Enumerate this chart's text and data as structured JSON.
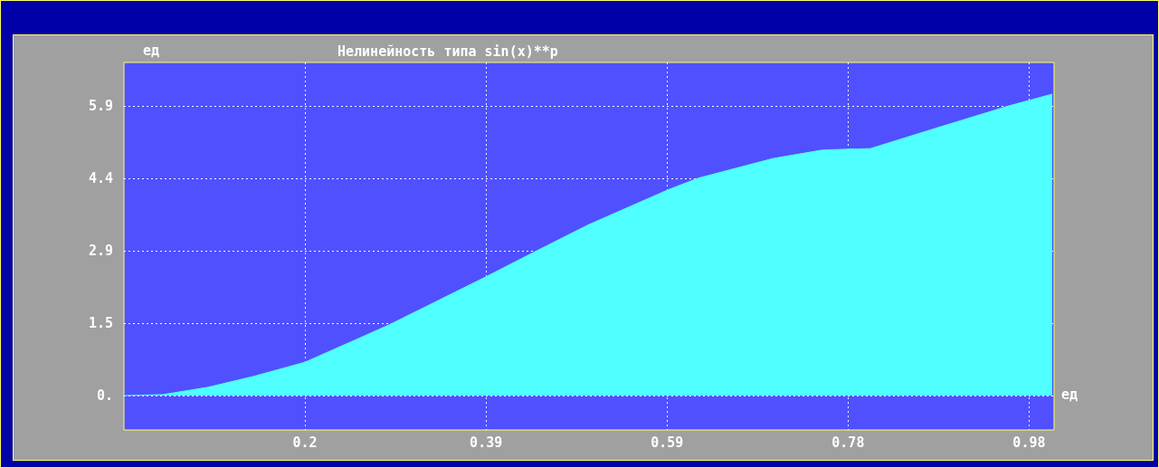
{
  "chart_data": {
    "type": "area",
    "title": "Нелинейность типа sin(x)**p",
    "ylabel": "ед",
    "xlabel": "ед",
    "x": [
      0,
      0.042,
      0.091,
      0.14,
      0.196,
      0.287,
      0.392,
      0.447,
      0.503,
      0.589,
      0.622,
      0.703,
      0.756,
      0.785,
      0.808,
      0.878,
      0.958,
      1.005
    ],
    "values": [
      0,
      0.02,
      0.17,
      0.39,
      0.68,
      1.44,
      2.42,
      2.95,
      3.48,
      4.19,
      4.43,
      4.83,
      5.0,
      5.02,
      5.03,
      5.44,
      5.9,
      6.14
    ],
    "color": "#50ffff",
    "xlim": [
      0,
      1.007
    ],
    "ylim": [
      -0.7,
      6.785
    ],
    "xticks": [
      {
        "value": 0.196,
        "label": "0.2"
      },
      {
        "value": 0.392,
        "label": "0.39"
      },
      {
        "value": 0.588,
        "label": "0.59"
      },
      {
        "value": 0.784,
        "label": "0.78"
      },
      {
        "value": 0.98,
        "label": "0.98"
      }
    ],
    "yticks": [
      {
        "value": 0,
        "label": "0."
      },
      {
        "value": 1.475,
        "label": "1.5"
      },
      {
        "value": 2.95,
        "label": "2.9"
      },
      {
        "value": 4.425,
        "label": "4.4"
      },
      {
        "value": 5.9,
        "label": "5.9"
      }
    ],
    "grid": true
  }
}
